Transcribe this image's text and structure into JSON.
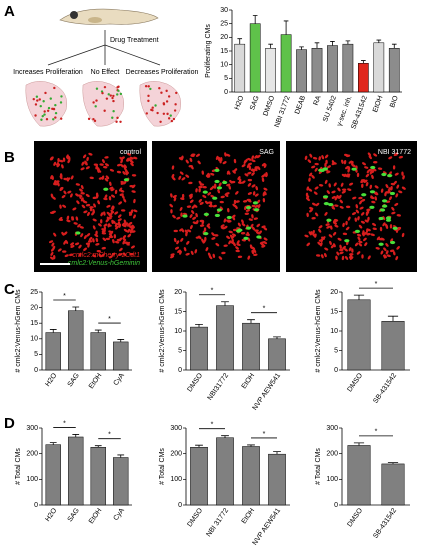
{
  "panels": {
    "a": "A",
    "b": "B",
    "c": "C",
    "d": "D"
  },
  "diagram": {
    "treatment": "Drug Treatment",
    "outcomes": [
      "Increases Proliferation",
      "No Effect",
      "Decreases Proliferation"
    ]
  },
  "images": {
    "labels": [
      "control",
      "SAG",
      "NBI 31772"
    ],
    "legend": [
      "cmlc2:mCherry-zCdt1",
      "cmlc2:Venus-hGeminin"
    ],
    "legend_colors": [
      "#e8231f",
      "#3fc63a"
    ]
  },
  "chart_data": [
    {
      "type": "bar",
      "ylabel": "Proliferating CMs",
      "categories": [
        "H2O",
        "SAG",
        "DMSO",
        "NBI 31772",
        "DEAB",
        "RA",
        "SU 5402",
        "γ-sec. inh.",
        "SB-431542",
        "EtOH",
        "BIO"
      ],
      "values": [
        17.5,
        25,
        16,
        21,
        15.5,
        16,
        17,
        17.5,
        10.5,
        18,
        16
      ],
      "errors": [
        2,
        3,
        1.5,
        5,
        1,
        2,
        1.5,
        1.2,
        1,
        1,
        1.5
      ],
      "colors": [
        "#d9d9d9",
        "#5fc24a",
        "#e6e6e6",
        "#5fc24a",
        "#8c8c8c",
        "#8c8c8c",
        "#8c8c8c",
        "#8c8c8c",
        "#e0261c",
        "#d9d9d9",
        "#8c8c8c"
      ],
      "ylim": [
        0,
        30
      ],
      "yticks": [
        0,
        5,
        10,
        15,
        20,
        25,
        30
      ]
    },
    {
      "type": "bar",
      "ylabel": "# cmlc2:Venus-hGem CMs",
      "categories": [
        "H2O",
        "SAG",
        "EtOH",
        "CyA"
      ],
      "values": [
        12,
        19,
        12,
        9
      ],
      "errors": [
        1,
        1.2,
        0.8,
        0.8
      ],
      "color": "#808080",
      "ylim": [
        0,
        25
      ],
      "yticks": [
        0,
        5,
        10,
        15,
        20,
        25
      ],
      "significance": [
        {
          "between": [
            0,
            1
          ],
          "label": "*"
        },
        {
          "between": [
            2,
            3
          ],
          "label": "*"
        }
      ]
    },
    {
      "type": "bar",
      "ylabel": "# cmlc2:Venus-hGem CMs",
      "categories": [
        "DMSO",
        "NBI31772",
        "EtOH",
        "NVP AEW541"
      ],
      "values": [
        11,
        16.5,
        12,
        8
      ],
      "errors": [
        0.7,
        1,
        0.9,
        0.5
      ],
      "color": "#808080",
      "ylim": [
        0,
        20
      ],
      "yticks": [
        0,
        5,
        10,
        15,
        20
      ],
      "significance": [
        {
          "between": [
            0,
            1
          ],
          "label": "*"
        },
        {
          "between": [
            2,
            3
          ],
          "label": "*"
        }
      ]
    },
    {
      "type": "bar",
      "ylabel": "# cmlc2:Venus-hGem CMs",
      "categories": [
        "DMSO",
        "SB-431542"
      ],
      "values": [
        18,
        12.5
      ],
      "errors": [
        1.2,
        1.3
      ],
      "color": "#808080",
      "ylim": [
        0,
        20
      ],
      "yticks": [
        0,
        5,
        10,
        15,
        20
      ],
      "significance": [
        {
          "between": [
            0,
            1
          ],
          "label": "*"
        }
      ]
    },
    {
      "type": "bar",
      "ylabel": "# Total CMs",
      "categories": [
        "H2O",
        "SAG",
        "EtOH",
        "CyA"
      ],
      "values": [
        235,
        265,
        225,
        185
      ],
      "errors": [
        8,
        10,
        6,
        10
      ],
      "color": "#808080",
      "ylim": [
        0,
        300
      ],
      "yticks": [
        0,
        100,
        200,
        300
      ],
      "significance": [
        {
          "between": [
            0,
            1
          ],
          "label": "*"
        },
        {
          "between": [
            2,
            3
          ],
          "label": "*"
        }
      ]
    },
    {
      "type": "bar",
      "ylabel": "# Total CMs",
      "categories": [
        "DMSO",
        "NBI 31772",
        "EtOH",
        "NVP AEW541"
      ],
      "values": [
        225,
        262,
        228,
        198
      ],
      "errors": [
        8,
        8,
        6,
        10
      ],
      "color": "#808080",
      "ylim": [
        0,
        300
      ],
      "yticks": [
        0,
        100,
        200,
        300
      ],
      "significance": [
        {
          "between": [
            0,
            1
          ],
          "label": "*"
        },
        {
          "between": [
            2,
            3
          ],
          "label": "*"
        }
      ]
    },
    {
      "type": "bar",
      "ylabel": "# Total CMs",
      "categories": [
        "DMSO",
        "SB-431542"
      ],
      "values": [
        232,
        160
      ],
      "errors": [
        10,
        5
      ],
      "color": "#808080",
      "ylim": [
        0,
        300
      ],
      "yticks": [
        0,
        100,
        200,
        300
      ],
      "significance": [
        {
          "between": [
            0,
            1
          ],
          "label": "*"
        }
      ]
    }
  ]
}
